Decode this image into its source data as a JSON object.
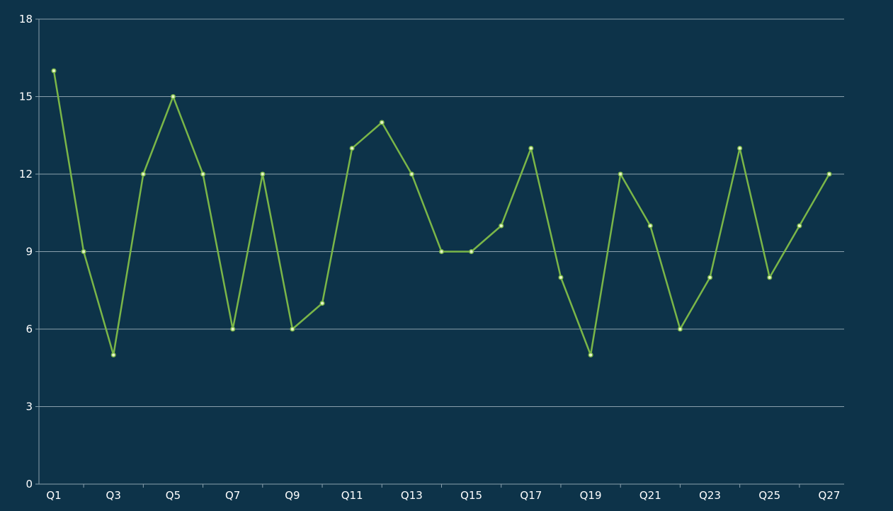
{
  "chart_data": {
    "type": "line",
    "title": "",
    "xlabel": "",
    "ylabel": "",
    "categories": [
      "Q1",
      "Q2",
      "Q3",
      "Q4",
      "Q5",
      "Q6",
      "Q7",
      "Q8",
      "Q9",
      "Q10",
      "Q11",
      "Q12",
      "Q13",
      "Q14",
      "Q15",
      "Q16",
      "Q17",
      "Q18",
      "Q19",
      "Q20",
      "Q21",
      "Q22",
      "Q23",
      "Q24",
      "Q25",
      "Q26",
      "Q27"
    ],
    "x_tick_labels_shown": [
      "Q1",
      "Q3",
      "Q5",
      "Q7",
      "Q9",
      "Q11",
      "Q13",
      "Q15",
      "Q17",
      "Q19",
      "Q21",
      "Q23",
      "Q25",
      "Q27"
    ],
    "ylim": [
      0,
      18
    ],
    "y_ticks": [
      0,
      3,
      6,
      9,
      12,
      15,
      18
    ],
    "grid": true,
    "legend": "none",
    "series": [
      {
        "values": [
          16,
          9,
          5,
          12,
          15,
          12,
          6,
          12,
          6,
          7,
          13,
          14,
          12,
          9,
          9,
          10,
          13,
          8,
          5,
          12,
          10,
          6,
          8,
          13,
          8,
          10,
          12
        ],
        "color": "#7ab648",
        "marker_color": "#e8f5c8"
      }
    ]
  },
  "colors": {
    "background": "#0d3349",
    "grid": "#8aa0ad",
    "text": "#ffffff"
  }
}
